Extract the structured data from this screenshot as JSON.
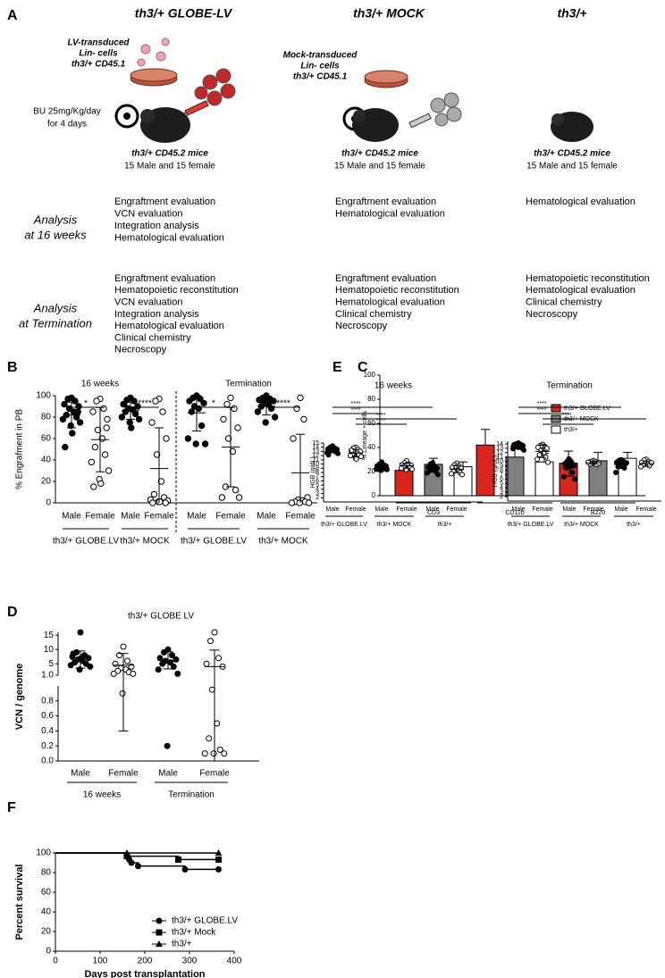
{
  "panel_a": {
    "label": "A",
    "columns": [
      "th3/+ GLOBE-LV",
      "th3/+ MOCK",
      "th3/+"
    ],
    "donor_lv": [
      "LV-transduced",
      "Lin- cells",
      "th3/+ CD45.1"
    ],
    "donor_mock": [
      "Mock-transduced",
      "Lin- cells",
      "th3/+ CD45.1"
    ],
    "conditioning": [
      "BU 25mg/Kg/day",
      "for 4 days"
    ],
    "recipients": [
      [
        "th3/+ CD45.2 mice",
        "15 Male and 15 female"
      ],
      [
        "th3/+ CD45.2 mice",
        "15 Male and 15 female"
      ],
      [
        "th3/+ CD45.2 mice",
        "15 Male and 15 female"
      ]
    ],
    "analysis_16": [
      "Analysis",
      "at 16 weeks"
    ],
    "analysis_term": [
      "Analysis",
      "at Termination"
    ],
    "evaluations_16": [
      [
        "Engraftment evaluation",
        "VCN evaluation",
        "Integration analysis",
        "Hematological  evaluation"
      ],
      [
        "Engraftment evaluation",
        "Hematological  evaluation"
      ],
      [
        "Hematological  evaluation"
      ]
    ],
    "evaluations_term": [
      [
        "Engraftment evaluation",
        "Hematopoietic reconstitution",
        "VCN evaluation",
        "Integration analysis",
        "Hematological  evaluation",
        "Clinical chemistry",
        "Necroscopy"
      ],
      [
        "Engraftment evaluation",
        "Hematopoietic reconstitution",
        "Hematological  evaluation",
        "Clinical chemistry",
        "Necroscopy"
      ],
      [
        "Hematopoietic reconstitution",
        "Hematological  evaluation",
        "Clinical chemistry",
        "Necroscopy"
      ]
    ]
  },
  "chart_data": [
    {
      "panel": "B",
      "type": "dot_plot",
      "ylabel": "% Engrafment in PB",
      "ylim": [
        0,
        100
      ],
      "yticks": [
        0,
        20,
        40,
        60,
        80,
        100
      ],
      "periods": [
        "16 weeks",
        "Termination"
      ],
      "group_labels": [
        "th3/+ GLOBE.LV",
        "th3/+ MOCK",
        "th3/+ GLOBE.LV",
        "th3/+ MOCK"
      ],
      "significance": [
        "*",
        "****",
        "*",
        "****"
      ],
      "groups": [
        {
          "label": "Male",
          "filled": true,
          "values": [
            98,
            97,
            95,
            92,
            90,
            88,
            85,
            82,
            80,
            78,
            75,
            72,
            65,
            52,
            85
          ],
          "mean": 82,
          "sd": 12
        },
        {
          "label": "Female",
          "filled": false,
          "values": [
            97,
            95,
            88,
            85,
            78,
            68,
            60,
            52,
            45,
            38,
            30,
            22,
            18,
            15,
            70
          ],
          "mean": 59,
          "sd": 30
        },
        {
          "label": "Male",
          "filled": true,
          "values": [
            98,
            96,
            95,
            92,
            90,
            88,
            87,
            85,
            83,
            80,
            78,
            75,
            70,
            92
          ],
          "mean": 86,
          "sd": 8
        },
        {
          "label": "Female",
          "filled": false,
          "values": [
            97,
            95,
            85,
            75,
            60,
            45,
            20,
            8,
            5,
            3,
            2,
            1,
            1,
            0,
            0
          ],
          "mean": 32,
          "sd": 38
        },
        {
          "label": "Male",
          "filled": true,
          "values": [
            100,
            98,
            97,
            95,
            93,
            90,
            88,
            85,
            72,
            60,
            55,
            55
          ],
          "mean": 84,
          "sd": 17
        },
        {
          "label": "Female",
          "filled": false,
          "values": [
            98,
            92,
            88,
            78,
            70,
            60,
            48,
            15,
            12,
            5,
            5
          ],
          "mean": 52,
          "sd": 37
        },
        {
          "label": "Male",
          "filled": true,
          "values": [
            100,
            98,
            97,
            96,
            95,
            93,
            92,
            90,
            88,
            85,
            80,
            75,
            95
          ],
          "mean": 90,
          "sd": 8
        },
        {
          "label": "Female",
          "filled": false,
          "values": [
            98,
            88,
            78,
            60,
            5,
            3,
            2,
            1,
            1,
            0,
            0,
            0
          ],
          "mean": 28,
          "sd": 36
        }
      ]
    },
    {
      "panel": "C",
      "type": "bar",
      "ylabel": "% Lineage + cells",
      "ylim": [
        0,
        100
      ],
      "yticks": [
        0,
        20,
        40,
        60,
        80,
        100
      ],
      "categories": [
        "CD3",
        "CD11b",
        "B220"
      ],
      "series": [
        {
          "name": "th3/+ GLOBE.LV",
          "color": "#d7261e",
          "values": [
            21,
            42,
            27
          ],
          "errors": [
            6,
            13,
            10
          ]
        },
        {
          "name": "th3/+ MOCK",
          "color": "#808080",
          "values": [
            26,
            32,
            29
          ],
          "errors": [
            5,
            9,
            7
          ]
        },
        {
          "name": "th3/+",
          "color": "#ffffff",
          "values": [
            24,
            28,
            31
          ],
          "errors": [
            4,
            7,
            5
          ]
        }
      ]
    },
    {
      "panel": "D",
      "type": "broken_dot_plot",
      "title": "th3/+ GLOBE LV",
      "ylabel": "VCN / genome",
      "ylim_upper": [
        1,
        16
      ],
      "yticks_upper": [
        5,
        10,
        15
      ],
      "ylim_lower": [
        0,
        1
      ],
      "yticks_lower": [
        {
          "value": 0,
          "label": "0.0"
        },
        0.2,
        0.4,
        0.6,
        0.8,
        {
          "value": 1,
          "label": "1.0"
        }
      ],
      "periods": [
        "16 weeks",
        "Termination"
      ],
      "groups": [
        {
          "label": "Male",
          "filled": true,
          "values": [
            16,
            9,
            8,
            7.5,
            7,
            6.5,
            6,
            5.5,
            5,
            4.5,
            4,
            3,
            7,
            8.5
          ],
          "mean": 6.5,
          "sd": 3
        },
        {
          "label": "Female",
          "filled": false,
          "values": [
            11,
            8,
            6,
            5,
            4,
            3.5,
            3,
            2.5,
            2,
            1.5,
            1.5,
            0.9
          ],
          "mean": 4.5,
          "sd": 4.1
        },
        {
          "label": "Male",
          "filled": true,
          "values": [
            10,
            9,
            8,
            7,
            6.5,
            6,
            5.5,
            5,
            4,
            3,
            1.5,
            0.2
          ],
          "mean": 6.2,
          "sd": 3
        },
        {
          "label": "Female",
          "filled": false,
          "values": [
            16,
            13,
            7,
            5,
            4,
            0.95,
            0.5,
            0.3,
            0.15,
            0.1,
            0.1,
            0.1
          ],
          "mean": 4,
          "sd": 5.8
        }
      ]
    },
    {
      "panel": "E",
      "type": "dot_plot",
      "title": "16 weeks",
      "ylabel": "HGB (g/dL)",
      "ylim": [
        1,
        15
      ],
      "yticks": [
        2,
        3,
        4,
        5,
        6,
        7,
        8,
        9,
        10,
        11,
        12,
        13,
        14,
        15
      ],
      "group_labels": [
        "th3/+ GLOBE.LV",
        "th3/+ MOCK",
        "th3/+"
      ],
      "significance": [
        "****",
        "****",
        "****",
        "****"
      ],
      "groups": [
        {
          "label": "Male",
          "filled": true,
          "values": [
            14.3,
            14,
            13.8,
            13.6,
            13.5,
            13.3,
            13.2,
            13,
            12.9,
            12.7,
            12.5,
            13.4,
            13.9,
            12.2
          ],
          "mean": 13.3,
          "sd": 0.6
        },
        {
          "label": "Female",
          "filled": false,
          "values": [
            14,
            13.8,
            13.5,
            13.2,
            13,
            12.8,
            12.6,
            12.4,
            12.2,
            12,
            11.8,
            11.5,
            11.2,
            13.3
          ],
          "mean": 12.6,
          "sd": 0.9
        },
        {
          "label": "Male",
          "filled": true,
          "values": [
            10.5,
            10,
            9.8,
            9.6,
            9.5,
            9.3,
            9.2,
            9,
            8.9,
            8.8,
            8.7,
            8.5,
            9.4
          ],
          "mean": 9.3,
          "sd": 0.6
        },
        {
          "label": "Female",
          "filled": false,
          "values": [
            10.8,
            10.3,
            10,
            9.8,
            9.7,
            9.6,
            9.5,
            9.4,
            9.2,
            9,
            8.8,
            8.7,
            9.9
          ],
          "mean": 9.6,
          "sd": 0.6
        },
        {
          "label": "Male",
          "filled": true,
          "values": [
            10.3,
            10,
            9.5,
            9.2,
            9,
            8.8,
            8.6,
            8.4,
            8.2,
            7.9,
            7.5,
            9.3
          ],
          "mean": 8.9,
          "sd": 0.8
        },
        {
          "label": "Female",
          "filled": false,
          "values": [
            10.2,
            9.8,
            9.5,
            9.2,
            9,
            8.8,
            8.5,
            8.2,
            8,
            7.7,
            7.5,
            9.4
          ],
          "mean": 8.8,
          "sd": 0.8
        }
      ]
    },
    {
      "type": "dot_plot",
      "title": "Termination",
      "ylabel": "HGB (g/dL)",
      "ylim": [
        1,
        14.6
      ],
      "yticks": [
        2,
        3,
        4,
        5,
        6,
        7,
        8,
        9,
        10,
        11,
        12,
        13,
        14
      ],
      "group_labels": [
        "th3/+ GLOBE.LV",
        "th3/+ MOCK",
        "th3/+"
      ],
      "significance": [
        "****",
        "****",
        "****",
        "****"
      ],
      "groups": [
        {
          "label": "Male",
          "filled": true,
          "values": [
            14.2,
            14,
            13.9,
            13.8,
            13.6,
            13.5,
            13.4,
            13.3,
            13.1,
            12.9,
            12.6,
            13.2
          ],
          "mean": 13.4,
          "sd": 0.5
        },
        {
          "label": "Female",
          "filled": false,
          "values": [
            13.9,
            13.6,
            13.4,
            13.2,
            13,
            12.5,
            12,
            11.5,
            11,
            10.5,
            9.8,
            13.5
          ],
          "mean": 12.3,
          "sd": 1.4
        },
        {
          "label": "Male",
          "filled": true,
          "values": [
            10.2,
            10,
            9.8,
            9.5,
            9.2,
            9,
            8.8,
            8.5,
            7.5,
            6.5,
            6,
            10.6
          ],
          "mean": 8.6,
          "sd": 1.9
        },
        {
          "label": "Female",
          "filled": false,
          "values": [
            10.2,
            10,
            9.9,
            9.8,
            9.7,
            9.6,
            9.5,
            9.4,
            9.3,
            9.8,
            9.6
          ],
          "mean": 9.7,
          "sd": 0.3
        },
        {
          "label": "Male",
          "filled": true,
          "values": [
            10.4,
            10.2,
            10,
            9.8,
            9.5,
            9.3,
            9,
            8.8,
            8.5,
            7.5,
            9.7
          ],
          "mean": 9.3,
          "sd": 0.9
        },
        {
          "label": "Female",
          "filled": false,
          "values": [
            10.5,
            10.3,
            10,
            9.8,
            9.6,
            9.5,
            9.4,
            9.2,
            9,
            8.8,
            9.7
          ],
          "mean": 9.5,
          "sd": 0.6
        }
      ]
    },
    {
      "panel": "F",
      "type": "line",
      "xlabel": "Days post transplantation",
      "ylabel": "Percent survival",
      "xlim": [
        0,
        400
      ],
      "xticks": [
        0,
        100,
        200,
        300,
        400
      ],
      "ylim": [
        0,
        100
      ],
      "yticks": [
        0,
        20,
        40,
        60,
        80,
        100
      ],
      "series": [
        {
          "name": "th3/+ GLOBE.LV",
          "marker": "circle",
          "x": [
            0,
            160,
            165,
            170,
            185,
            290,
            365
          ],
          "values": [
            100,
            96.7,
            93.3,
            90,
            86.7,
            83.3,
            83.3
          ]
        },
        {
          "name": "th3/+ Mock",
          "marker": "square",
          "x": [
            0,
            160,
            275,
            365
          ],
          "values": [
            100,
            96.7,
            93.3,
            93.3
          ]
        },
        {
          "name": "th3/+",
          "marker": "triangle",
          "x": [
            0,
            160,
            365
          ],
          "values": [
            100,
            100,
            100
          ]
        }
      ]
    }
  ]
}
